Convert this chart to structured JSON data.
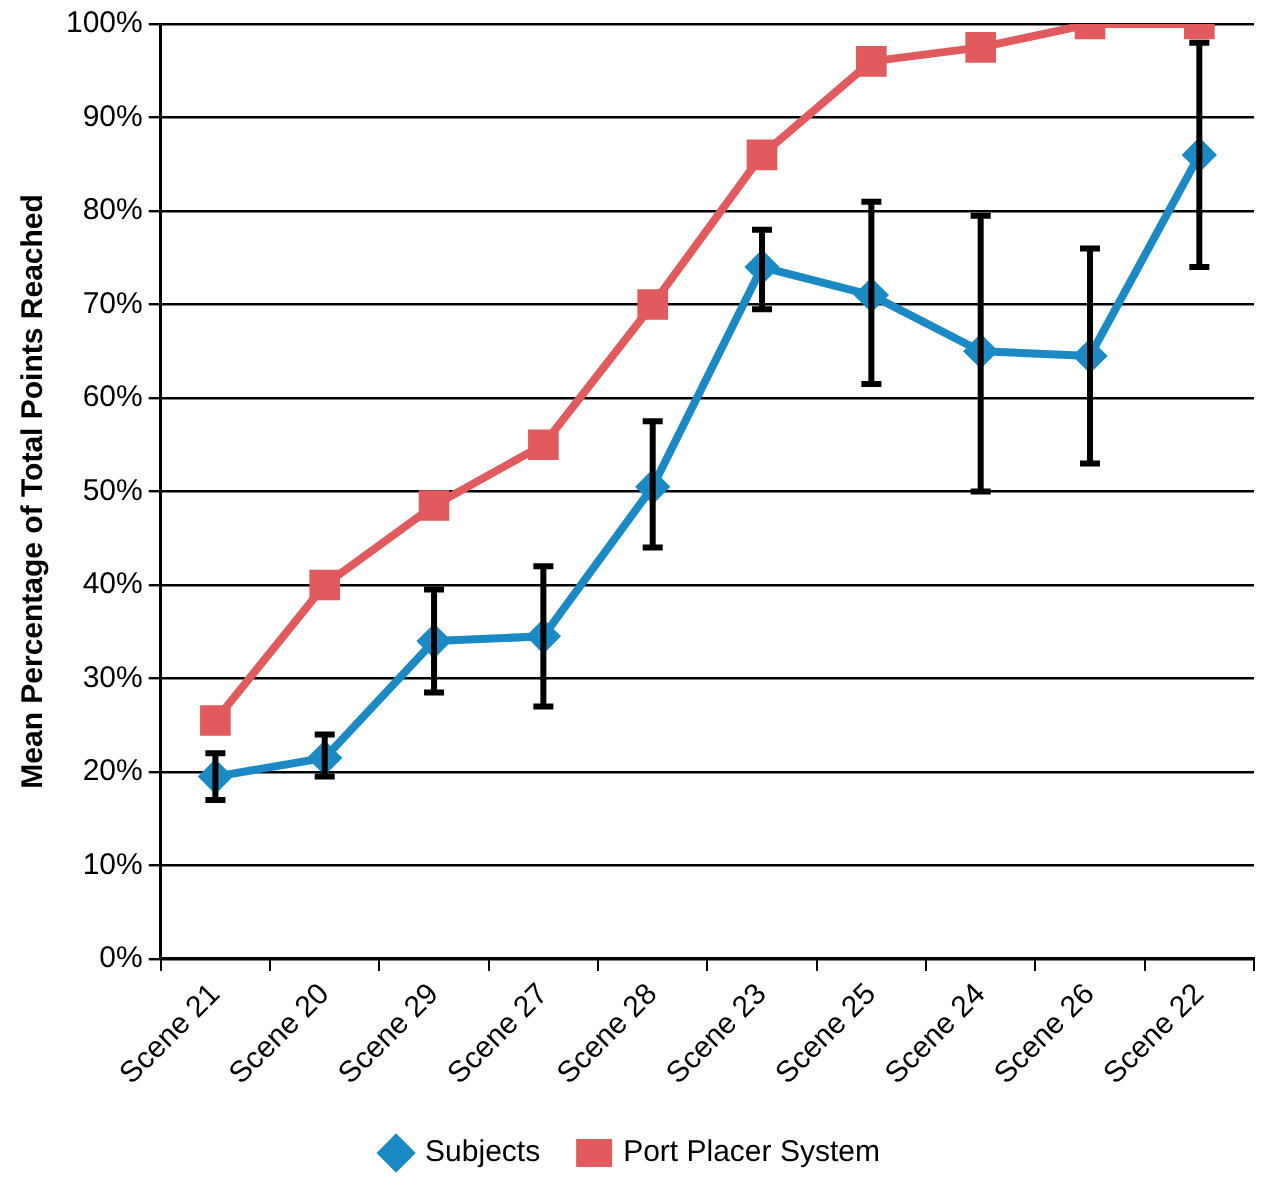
{
  "chart_data": {
    "type": "line",
    "ylabel": "Mean Percentage of Total Points Reached",
    "categories": [
      "Scene 21",
      "Scene 20",
      "Scene 29",
      "Scene 27",
      "Scene 28",
      "Scene 23",
      "Scene 25",
      "Scene 24",
      "Scene 26",
      "Scene 22"
    ],
    "series": [
      {
        "name": "Subjects",
        "color": "#1b8ac4",
        "marker": "diamond",
        "values": [
          19.5,
          21.5,
          34,
          34.5,
          50.5,
          74,
          71,
          65,
          64.5,
          86
        ],
        "errors": [
          [
            17,
            22
          ],
          [
            19.5,
            24
          ],
          [
            28.5,
            39.5
          ],
          [
            27,
            42
          ],
          [
            44,
            57.5
          ],
          [
            69.5,
            78
          ],
          [
            61.5,
            81
          ],
          [
            50,
            79.5
          ],
          [
            53,
            76
          ],
          [
            74,
            98
          ]
        ]
      },
      {
        "name": "Port Placer System",
        "color": "#e05a5e",
        "marker": "square",
        "values": [
          25.5,
          40,
          48.5,
          55,
          70,
          86,
          96,
          97.5,
          100,
          100
        ]
      }
    ],
    "ylim": [
      0,
      100
    ],
    "yticks": [
      {
        "value": 0,
        "label": "0%"
      },
      {
        "value": 10,
        "label": "10%"
      },
      {
        "value": 20,
        "label": "20%"
      },
      {
        "value": 30,
        "label": "30%"
      },
      {
        "value": 40,
        "label": "40%"
      },
      {
        "value": 50,
        "label": "50%"
      },
      {
        "value": 60,
        "label": "60%"
      },
      {
        "value": 70,
        "label": "70%"
      },
      {
        "value": 80,
        "label": "80%"
      },
      {
        "value": 90,
        "label": "90%"
      },
      {
        "value": 100,
        "label": "100%"
      }
    ],
    "grid": "y",
    "legend": "bottom",
    "line_style": "solid"
  }
}
